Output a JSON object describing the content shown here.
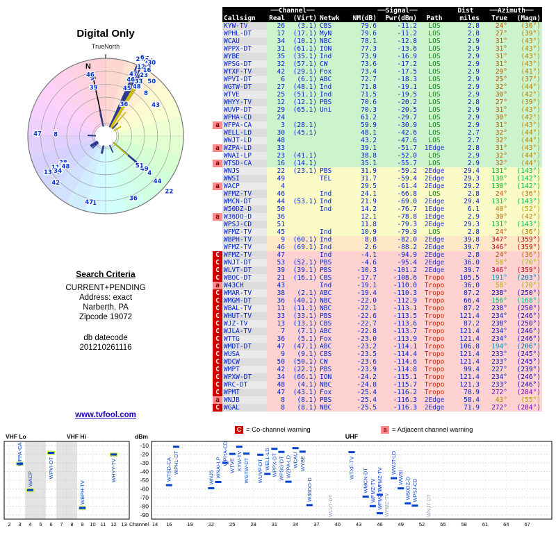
{
  "radar": {
    "title": "Digital Only",
    "north_label": "TrueNorth",
    "compass_n": "N"
  },
  "criteria": {
    "heading": "Search Criteria",
    "lines": [
      "CURRENT+PENDING",
      "Address: exact",
      "Narberth, PA",
      "Zipcode 19072"
    ],
    "datecode_label": "db datecode",
    "datecode": "201210261116"
  },
  "link": {
    "label": "www.tvfool.com"
  },
  "table": {
    "group_headers": {
      "channel": "Channel",
      "signal": "Signal",
      "dist": "Dist",
      "azimuth": "Azimuth",
      "decor": "══"
    },
    "col_headers": {
      "callsign": "Callsign",
      "real": "Real",
      "virt": "(Virt)",
      "netwk": "Netwk",
      "nm": "NM(dB)",
      "pwr": "Pwr(dBm)",
      "path": "Path",
      "miles": "miles",
      "true_label": "True",
      "magn_label": "(Magn)"
    },
    "row_fields": [
      "callsign",
      "real_ch",
      "virt_ch",
      "netwk",
      "nm_db",
      "pwr_dbm",
      "path",
      "dist_mi",
      "az_true",
      "az_magn",
      "warn"
    ],
    "rows": [
      [
        "KYW-TV",
        26,
        "3.1",
        "CBS",
        79.6,
        -11.2,
        "LOS",
        "2.8",
        24,
        36,
        ""
      ],
      [
        "WPHL-DT",
        17,
        "17.1",
        "MyN",
        79.6,
        -11.2,
        "LOS",
        "2.8",
        27,
        39,
        ""
      ],
      [
        "WCAU",
        34,
        "10.1",
        "NBC",
        78.1,
        -12.8,
        "LOS",
        "2.9",
        31,
        43,
        ""
      ],
      [
        "WPPX-DT",
        31,
        "61.1",
        "ION",
        77.3,
        -13.6,
        "LOS",
        "2.9",
        31,
        43,
        ""
      ],
      [
        "WYBE",
        35,
        "35.1",
        "Ind",
        73.9,
        -16.9,
        "LOS",
        "2.9",
        31,
        43,
        ""
      ],
      [
        "WPSG-DT",
        32,
        "57.1",
        "CW",
        73.6,
        -17.2,
        "LOS",
        "2.9",
        31,
        43,
        ""
      ],
      [
        "WTXF-TV",
        42,
        "29.1",
        "Fox",
        73.4,
        -17.5,
        "LOS",
        "2.9",
        29,
        41,
        ""
      ],
      [
        "WPVI-DT",
        6,
        "6.1",
        "ABC",
        72.7,
        -18.3,
        "LOS",
        "2.9",
        25,
        37,
        ""
      ],
      [
        "WGTW-DT",
        27,
        "48.1",
        "Ind",
        71.8,
        -19.1,
        "LOS",
        "2.9",
        32,
        44,
        ""
      ],
      [
        "WTVE",
        25,
        "51.1",
        "Ind",
        71.5,
        -19.5,
        "LOS",
        "2.9",
        30,
        42,
        ""
      ],
      [
        "WHYY-TV",
        12,
        "12.1",
        "PBS",
        70.6,
        -20.2,
        "LOS",
        "2.8",
        27,
        39,
        ""
      ],
      [
        "WUVP-DT",
        29,
        "65.1",
        "Uni",
        70.3,
        -20.5,
        "LOS",
        "2.9",
        31,
        43,
        ""
      ],
      [
        "WPHA-CD",
        24,
        "",
        "",
        61.2,
        -29.7,
        "LOS",
        "2.9",
        30,
        42,
        ""
      ],
      [
        "WFPA-CA",
        3,
        "28.1",
        "",
        59.9,
        -30.9,
        "LOS",
        "2.9",
        31,
        43,
        "a"
      ],
      [
        "WELL-LD",
        30,
        "45.1",
        "",
        48.1,
        -42.6,
        "LOS",
        "2.7",
        32,
        44,
        ""
      ],
      [
        "WWJT-LD",
        48,
        "",
        "",
        43.2,
        -47.6,
        "LOS",
        "2.7",
        32,
        44,
        ""
      ],
      [
        "WZPA-LD",
        33,
        "",
        "",
        39.1,
        -51.7,
        "1Edge",
        "2.8",
        31,
        43,
        "a"
      ],
      [
        "WNAI-LP",
        23,
        "41.1",
        "",
        38.8,
        -52.0,
        "LOS",
        "2.9",
        32,
        44,
        ""
      ],
      [
        "WTSD-CA",
        16,
        "14.1",
        "",
        35.1,
        -55.7,
        "LOS",
        "2.9",
        32,
        44,
        "a"
      ],
      [
        "WNJS",
        22,
        "23.1",
        "PBS",
        31.9,
        -59.2,
        "2Edge",
        "29.4",
        131,
        143,
        ""
      ],
      [
        "WWSI",
        49,
        "",
        "TEL",
        31.7,
        -59.4,
        "2Edge",
        "29.3",
        130,
        142,
        ""
      ],
      [
        "WACP",
        4,
        "",
        "",
        29.5,
        -61.4,
        "2Edge",
        "29.2",
        130,
        142,
        "a"
      ],
      [
        "WFMZ-TV",
        46,
        "",
        "Ind",
        24.1,
        -66.8,
        "LOS",
        "2.8",
        24,
        36,
        ""
      ],
      [
        "WMCN-DT",
        44,
        "53.1",
        "Ind",
        21.9,
        -69.0,
        "2Edge",
        "29.4",
        131,
        143,
        ""
      ],
      [
        "W50DZ-D",
        50,
        "",
        "Ind",
        14.2,
        -76.7,
        "1Edge",
        "6.1",
        40,
        52,
        ""
      ],
      [
        "W36DO-D",
        36,
        "",
        "",
        12.1,
        -78.8,
        "1Edge",
        "2.9",
        30,
        42,
        "a"
      ],
      [
        "WPSJ-CD",
        51,
        "",
        "",
        11.8,
        -79.3,
        "2Edge",
        "29.3",
        131,
        143,
        ""
      ],
      [
        "WFMZ-TV",
        45,
        "",
        "Ind",
        10.9,
        -79.9,
        "LOS",
        "2.8",
        24,
        36,
        ""
      ],
      [
        "WBPH-TV",
        9,
        "60.1",
        "Ind",
        8.8,
        -82.0,
        "2Edge",
        "39.8",
        347,
        359,
        ""
      ],
      [
        "WFMZ-TV",
        46,
        "69.1",
        "Ind",
        2.6,
        -88.2,
        "2Edge",
        "39.7",
        346,
        359,
        ""
      ],
      [
        "WFMZ-TV",
        47,
        "",
        "Ind",
        -4.1,
        -94.9,
        "2Edge",
        "2.8",
        24,
        36,
        "C"
      ],
      [
        "WNJT-DT",
        53,
        "52.1",
        "PBS",
        -4.6,
        -95.4,
        "2Edge",
        "36.0",
        58,
        70,
        "C"
      ],
      [
        "WLVT-DT",
        39,
        "39.1",
        "PBS",
        -10.3,
        -101.2,
        "2Edge",
        "39.7",
        346,
        359,
        "C"
      ],
      [
        "WBOC-DT",
        21,
        "16.1",
        "CBS",
        -17.7,
        -108.6,
        "Tropo",
        "105.5",
        191,
        203,
        "C"
      ],
      [
        "W43CH",
        43,
        "",
        "Ind",
        -19.1,
        -110.0,
        "Tropo",
        "36.0",
        58,
        70,
        "a"
      ],
      [
        "WMAR-TV",
        38,
        "2.1",
        "ABC",
        -19.4,
        -110.3,
        "Tropo",
        "87.2",
        238,
        250,
        "C"
      ],
      [
        "WMGM-DT",
        36,
        "40.1",
        "NBC",
        -22.0,
        -112.9,
        "Tropo",
        "66.4",
        156,
        168,
        "C"
      ],
      [
        "WBAL-TV",
        11,
        "11.1",
        "NBC",
        -22.1,
        -113.1,
        "Tropo",
        "87.2",
        238,
        250,
        "C"
      ],
      [
        "WHUT-TV",
        33,
        "33.1",
        "PBS",
        -22.6,
        -113.5,
        "Tropo",
        "121.4",
        234,
        246,
        "C"
      ],
      [
        "WJZ-TV",
        13,
        "13.1",
        "CBS",
        -22.7,
        -113.6,
        "Tropo",
        "87.2",
        238,
        250,
        "C"
      ],
      [
        "WJLA-TV",
        7,
        "7.1",
        "ABC",
        -22.8,
        -113.7,
        "Tropo",
        "121.4",
        234,
        246,
        "C"
      ],
      [
        "WTTG",
        36,
        "5.1",
        "Fox",
        -23.0,
        -113.9,
        "Tropo",
        "121.4",
        234,
        246,
        "C"
      ],
      [
        "WMDT-DT",
        47,
        "47.1",
        "ABC",
        -23.2,
        -114.1,
        "Tropo",
        "106.8",
        194,
        206,
        "C"
      ],
      [
        "WUSA",
        9,
        "9.1",
        "CBS",
        -23.5,
        -114.4,
        "Tropo",
        "121.4",
        233,
        245,
        "C"
      ],
      [
        "WDCW",
        50,
        "50.1",
        "CW",
        -23.6,
        -114.6,
        "Tropo",
        "121.4",
        233,
        245,
        "C"
      ],
      [
        "WMPT",
        42,
        "22.1",
        "PBS",
        -23.9,
        -114.8,
        "Tropo",
        "99.4",
        227,
        239,
        "C"
      ],
      [
        "WPXW-DT",
        34,
        "66.1",
        "ION",
        -24.2,
        -115.1,
        "Tropo",
        "121.4",
        234,
        246,
        "C"
      ],
      [
        "WRC-DT",
        48,
        "4.1",
        "NBC",
        -24.8,
        -115.7,
        "Tropo",
        "121.3",
        233,
        246,
        "C"
      ],
      [
        "WPMT",
        47,
        "43.1",
        "Fox",
        -25.4,
        -116.2,
        "Tropo",
        "70.9",
        272,
        284,
        "C"
      ],
      [
        "WNJB",
        8,
        "8.1",
        "PBS",
        -25.4,
        -116.3,
        "2Edge",
        "58.4",
        43,
        55,
        "a"
      ],
      [
        "WGAL",
        8,
        "8.1",
        "NBC",
        -25.5,
        -116.3,
        "2Edge",
        "71.9",
        272,
        284,
        "C"
      ]
    ]
  },
  "legend": {
    "c_symbol": "C",
    "c_text": "= Co-channel warning",
    "a_symbol": "a",
    "a_text": "= Adjacent channel warning"
  },
  "charts": {
    "dbm_label": "dBm",
    "channel_label": "Channel",
    "vhf_lo_label": "VHF Lo",
    "vhf_hi_label": "VHF Hi",
    "uhf_label": "UHF",
    "dbm_ticks": [
      -10,
      -20,
      -30,
      -40,
      -50,
      -60,
      -70,
      -80,
      -90
    ],
    "vhf_ticks": [
      2,
      3,
      4,
      5,
      6,
      7,
      8,
      9,
      10,
      11,
      12,
      13
    ],
    "uhf_ticks": [
      14,
      16,
      19,
      22,
      25,
      28,
      31,
      34,
      37,
      40,
      43,
      46,
      49,
      52,
      55,
      58,
      61,
      64,
      67
    ]
  },
  "colors": {
    "text_blue": "#0022cc",
    "path_los": "#008800",
    "path_edge": "#2233cc",
    "path_tropo": "#cc2200",
    "tier_strong": "#cdf3cd",
    "tier_mid": "#fbfbc8",
    "tier_low": "#ffe8c6",
    "tier_neg": "#ffd2d2",
    "warn_c_bg": "#cc0000",
    "warn_a_bg": "#ff8a8a",
    "marker_blue": "#0040cc",
    "lp_yellow": "#cfc000",
    "line_navy": "#2b3990"
  }
}
